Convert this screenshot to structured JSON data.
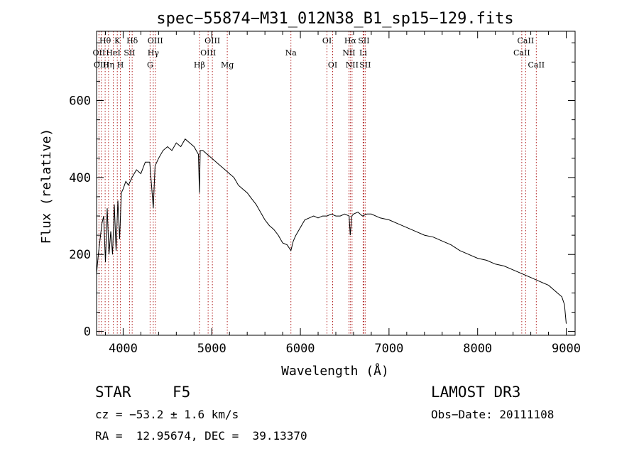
{
  "chart_data": {
    "type": "line",
    "title": "spec−55874−M31_012N38_B1_sp15−129.fits",
    "xlabel": "Wavelength (Å)",
    "ylabel": "Flux (relative)",
    "xlim": [
      3700,
      9100
    ],
    "ylim": [
      -10,
      780
    ],
    "xticks": [
      4000,
      5000,
      6000,
      7000,
      8000,
      9000
    ],
    "xtick_labels": [
      "4000",
      "5000",
      "6000",
      "7000",
      "8000",
      "9000"
    ],
    "yticks": [
      0,
      200,
      400,
      600
    ],
    "ytick_labels": [
      "0",
      "200",
      "400",
      "600"
    ],
    "grid": false,
    "spectrum": {
      "name": "flux",
      "x": [
        3700,
        3720,
        3740,
        3760,
        3780,
        3800,
        3820,
        3840,
        3860,
        3880,
        3900,
        3920,
        3940,
        3960,
        3980,
        4000,
        4030,
        4060,
        4100,
        4150,
        4200,
        4250,
        4300,
        4340,
        4360,
        4400,
        4450,
        4500,
        4550,
        4600,
        4650,
        4700,
        4750,
        4800,
        4850,
        4861,
        4870,
        4900,
        4950,
        5000,
        5050,
        5100,
        5150,
        5200,
        5250,
        5300,
        5350,
        5400,
        5450,
        5500,
        5550,
        5600,
        5650,
        5700,
        5750,
        5800,
        5850,
        5893,
        5920,
        5950,
        6000,
        6050,
        6100,
        6150,
        6200,
        6250,
        6300,
        6350,
        6400,
        6450,
        6500,
        6550,
        6563,
        6580,
        6600,
        6650,
        6700,
        6750,
        6800,
        6900,
        7000,
        7100,
        7200,
        7300,
        7400,
        7500,
        7600,
        7700,
        7800,
        7900,
        8000,
        8100,
        8200,
        8300,
        8400,
        8500,
        8600,
        8700,
        8800,
        8900,
        8950,
        8980,
        9000
      ],
      "y": [
        150,
        200,
        240,
        280,
        300,
        180,
        320,
        200,
        260,
        200,
        330,
        210,
        340,
        240,
        360,
        370,
        390,
        380,
        400,
        420,
        410,
        440,
        440,
        320,
        430,
        450,
        470,
        480,
        470,
        490,
        480,
        500,
        490,
        480,
        460,
        360,
        470,
        470,
        460,
        450,
        440,
        430,
        420,
        410,
        400,
        380,
        370,
        360,
        345,
        330,
        310,
        290,
        275,
        265,
        250,
        230,
        225,
        210,
        235,
        250,
        270,
        290,
        295,
        300,
        295,
        300,
        300,
        305,
        300,
        300,
        305,
        300,
        250,
        300,
        305,
        310,
        300,
        305,
        305,
        295,
        290,
        280,
        270,
        260,
        250,
        245,
        235,
        225,
        210,
        200,
        190,
        185,
        175,
        170,
        160,
        150,
        140,
        130,
        120,
        100,
        90,
        70,
        20
      ]
    },
    "lines": [
      {
        "label": "Hθ",
        "wave": 3797,
        "row": 0
      },
      {
        "label": "Hη",
        "wave": 3835,
        "row": 2
      },
      {
        "label": "OII",
        "wave": 3727,
        "row": 1
      },
      {
        "label": "OIII",
        "wave": 3755,
        "row": 2
      },
      {
        "label": "K",
        "wave": 3934,
        "row": 0
      },
      {
        "label": "HeI",
        "wave": 3889,
        "row": 1
      },
      {
        "label": "H",
        "wave": 3969,
        "row": 2
      },
      {
        "label": "Hδ",
        "wave": 4102,
        "row": 0
      },
      {
        "label": "SII",
        "wave": 4072,
        "row": 1
      },
      {
        "label": "OIII",
        "wave": 4363,
        "row": 0
      },
      {
        "label": "Hγ",
        "wave": 4340,
        "row": 1
      },
      {
        "label": "G",
        "wave": 4304,
        "row": 2
      },
      {
        "label": "OIII",
        "wave": 5007,
        "row": 0
      },
      {
        "label": "OIII",
        "wave": 4959,
        "row": 1
      },
      {
        "label": "Hβ",
        "wave": 4861,
        "row": 2
      },
      {
        "label": "Mg",
        "wave": 5175,
        "row": 2
      },
      {
        "label": "Na",
        "wave": 5893,
        "row": 1
      },
      {
        "label": "OI",
        "wave": 6300,
        "row": 0
      },
      {
        "label": "OI",
        "wave": 6364,
        "row": 2
      },
      {
        "label": "Hα",
        "wave": 6563,
        "row": 0
      },
      {
        "label": "NII",
        "wave": 6548,
        "row": 1
      },
      {
        "label": "NII",
        "wave": 6583,
        "row": 2
      },
      {
        "label": "SII",
        "wave": 6716,
        "row": 0
      },
      {
        "label": "Li",
        "wave": 6708,
        "row": 1
      },
      {
        "label": "SII",
        "wave": 6731,
        "row": 2
      },
      {
        "label": "CaII",
        "wave": 8542,
        "row": 0
      },
      {
        "label": "CaII",
        "wave": 8498,
        "row": 1
      },
      {
        "label": "CaII",
        "wave": 8662,
        "row": 2
      }
    ]
  },
  "info": {
    "class": "STAR",
    "subclass": "F5",
    "survey": "LAMOST DR3",
    "cz": "cz = −53.2 ± 1.6 km/s",
    "obs_date": "Obs−Date: 20111108",
    "coords": "RA =  12.95674, DEC =  39.13370"
  },
  "colors": {
    "spectrum": "#000000",
    "marker_lines": "#b22222",
    "axes": "#000000"
  }
}
